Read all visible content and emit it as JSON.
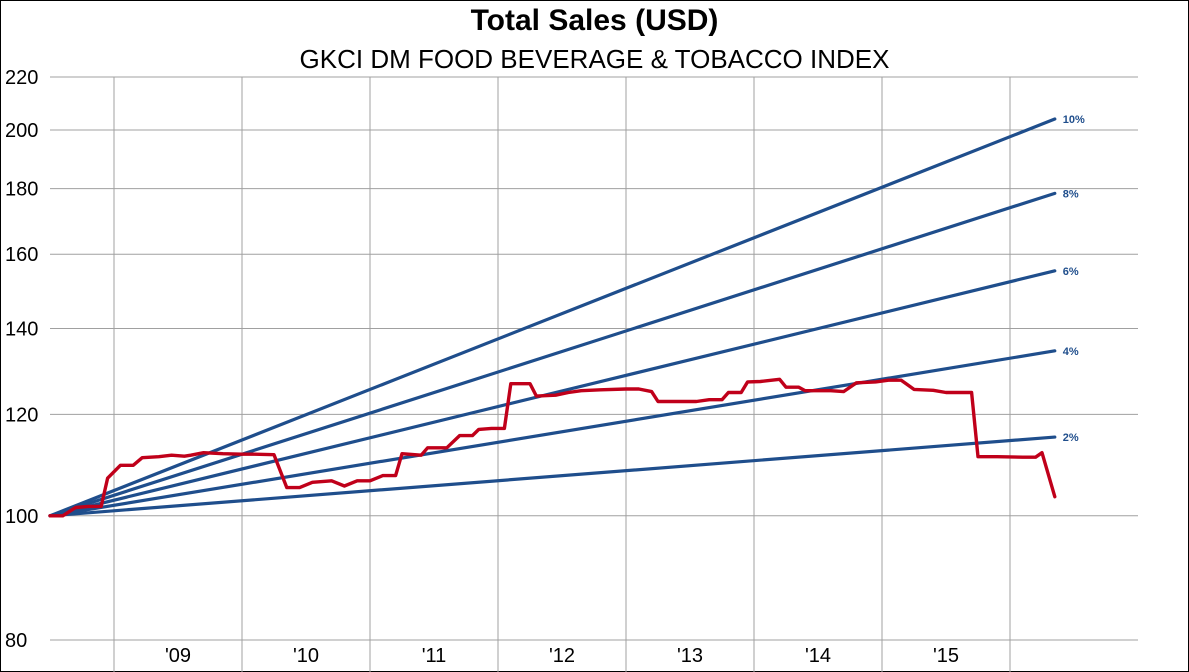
{
  "chart_data": {
    "type": "line",
    "title": "Total Sales (USD)",
    "subtitle": "GKCI DM FOOD BEVERAGE & TOBACCO INDEX",
    "y_scale": "log",
    "ylim": [
      80,
      220
    ],
    "y_ticks": [
      80,
      100,
      120,
      140,
      160,
      180,
      200,
      220
    ],
    "y_tick_labels": [
      "80",
      "100",
      "120",
      "140",
      "160",
      "180",
      "200",
      "220"
    ],
    "xlim": [
      2008.0,
      2016.5
    ],
    "x_ticks": [
      2009,
      2010,
      2011,
      2012,
      2013,
      2014,
      2015
    ],
    "x_tick_labels": [
      "'09",
      "'10",
      "'11",
      "'12",
      "'13",
      "'14",
      "'15"
    ],
    "grid": true,
    "colors": {
      "growth_lines": "#1f4e8c",
      "sales": "#c0001a"
    },
    "growth_lines": [
      {
        "label": "2%",
        "rate": 0.02,
        "start": [
          2008.0,
          100
        ],
        "end": [
          2015.85,
          115.2
        ]
      },
      {
        "label": "4%",
        "rate": 0.04,
        "start": [
          2008.0,
          100
        ],
        "end": [
          2015.85,
          134.5
        ]
      },
      {
        "label": "6%",
        "rate": 0.06,
        "start": [
          2008.0,
          100
        ],
        "end": [
          2015.85,
          155.3
        ]
      },
      {
        "label": "8%",
        "rate": 0.08,
        "start": [
          2008.0,
          100
        ],
        "end": [
          2015.85,
          178.5
        ]
      },
      {
        "label": "10%",
        "rate": 0.1,
        "start": [
          2008.0,
          100
        ],
        "end": [
          2015.85,
          204
        ]
      }
    ],
    "series": [
      {
        "points": [
          [
            2008.0,
            100
          ],
          [
            2008.1,
            100
          ],
          [
            2008.2,
            101.5
          ],
          [
            2008.3,
            101.7
          ],
          [
            2008.4,
            101.7
          ],
          [
            2008.45,
            107
          ],
          [
            2008.55,
            109.5
          ],
          [
            2008.65,
            109.5
          ],
          [
            2008.72,
            111
          ],
          [
            2008.85,
            111.2
          ],
          [
            2008.95,
            111.5
          ],
          [
            2009.05,
            111.3
          ],
          [
            2009.1,
            111.5
          ],
          [
            2009.2,
            112
          ],
          [
            2009.35,
            111.8
          ],
          [
            2009.5,
            111.7
          ],
          [
            2009.6,
            111.7
          ],
          [
            2009.75,
            111.6
          ],
          [
            2009.85,
            105.2
          ],
          [
            2009.95,
            105.2
          ],
          [
            2010.05,
            106.2
          ],
          [
            2010.2,
            106.5
          ],
          [
            2010.3,
            105.5
          ],
          [
            2010.4,
            106.5
          ],
          [
            2010.5,
            106.5
          ],
          [
            2010.6,
            107.5
          ],
          [
            2010.7,
            107.5
          ],
          [
            2010.75,
            111.8
          ],
          [
            2010.9,
            111.5
          ],
          [
            2010.95,
            113
          ],
          [
            2011.1,
            113
          ],
          [
            2011.2,
            115.5
          ],
          [
            2011.3,
            115.5
          ],
          [
            2011.35,
            116.8
          ],
          [
            2011.45,
            117
          ],
          [
            2011.55,
            117
          ],
          [
            2011.6,
            126.8
          ],
          [
            2011.75,
            126.8
          ],
          [
            2011.8,
            124
          ],
          [
            2011.95,
            124.2
          ],
          [
            2012.05,
            124.8
          ],
          [
            2012.15,
            125.2
          ],
          [
            2012.3,
            125.4
          ],
          [
            2012.5,
            125.6
          ],
          [
            2012.6,
            125.6
          ],
          [
            2012.7,
            125
          ],
          [
            2012.75,
            122.8
          ],
          [
            2012.9,
            122.8
          ],
          [
            2013.05,
            122.8
          ],
          [
            2013.15,
            123.2
          ],
          [
            2013.25,
            123.2
          ],
          [
            2013.3,
            124.8
          ],
          [
            2013.4,
            124.8
          ],
          [
            2013.45,
            127.2
          ],
          [
            2013.55,
            127.3
          ],
          [
            2013.7,
            127.8
          ],
          [
            2013.75,
            126
          ],
          [
            2013.85,
            126
          ],
          [
            2013.9,
            125.2
          ],
          [
            2014.1,
            125.2
          ],
          [
            2014.2,
            125
          ],
          [
            2014.3,
            127
          ],
          [
            2014.45,
            127.2
          ],
          [
            2014.55,
            127.6
          ],
          [
            2014.65,
            127.6
          ],
          [
            2014.75,
            125.5
          ],
          [
            2014.9,
            125.3
          ],
          [
            2015.0,
            124.8
          ],
          [
            2015.1,
            124.8
          ],
          [
            2015.2,
            124.8
          ],
          [
            2015.25,
            111.2
          ],
          [
            2015.4,
            111.2
          ],
          [
            2015.6,
            111.1
          ],
          [
            2015.7,
            111.1
          ],
          [
            2015.75,
            112
          ],
          [
            2015.85,
            103.5
          ]
        ]
      }
    ]
  }
}
